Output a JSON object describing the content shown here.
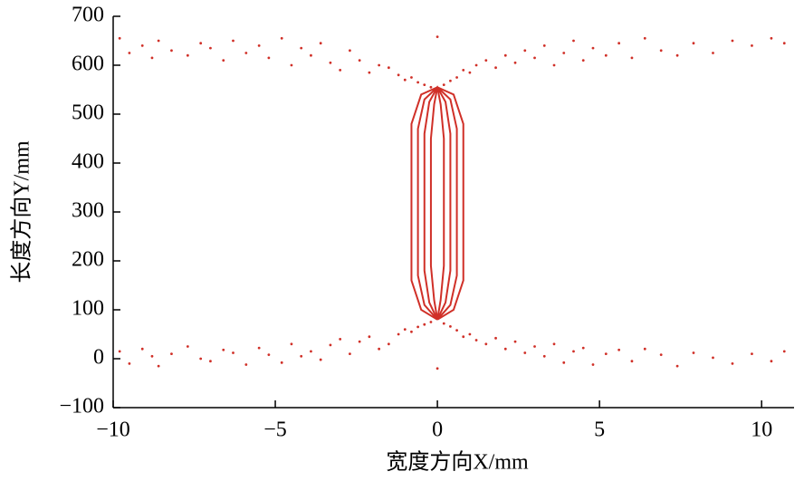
{
  "chart_data": {
    "type": "scatter",
    "x_label": "宽度方向X/mm",
    "y_label": "长度方向Y/mm",
    "xlim": [
      -10,
      11
    ],
    "ylim": [
      -100,
      700
    ],
    "xticks": [
      {
        "value": -10,
        "label": "−10"
      },
      {
        "value": -5,
        "label": "−5"
      },
      0,
      5,
      10
    ],
    "yticks": [
      {
        "value": -100,
        "label": "−100"
      },
      0,
      100,
      200,
      300,
      400,
      500,
      600,
      700
    ],
    "series": [
      {
        "color": "#d03028",
        "x": [
          -9.8,
          -9.5,
          -9.1,
          -8.8,
          -8.6,
          -8.2,
          -7.7,
          -7.3,
          -7.0,
          -6.6,
          -6.3,
          -5.9,
          -5.5,
          -5.2,
          -4.8,
          -4.5,
          -4.2,
          -3.9,
          -3.6,
          -3.3,
          -3.0,
          -2.7,
          -2.4,
          -2.1,
          -1.8,
          -1.5,
          -1.2,
          -1.0,
          -0.8,
          -0.6,
          -0.4,
          -0.2,
          0.0,
          0.2,
          0.4,
          0.6,
          0.8,
          1.0,
          1.2,
          1.5,
          1.8,
          2.1,
          2.4,
          2.7,
          3.0,
          3.3,
          3.6,
          3.9,
          4.2,
          4.5,
          4.8,
          5.2,
          5.6,
          6.0,
          6.4,
          6.9,
          7.4,
          7.9,
          8.5,
          9.1,
          9.7,
          10.3,
          10.7
        ],
        "values": [
          655,
          625,
          640,
          615,
          650,
          630,
          620,
          645,
          635,
          610,
          650,
          625,
          640,
          615,
          655,
          600,
          635,
          620,
          645,
          605,
          590,
          630,
          610,
          585,
          600,
          595,
          580,
          570,
          575,
          565,
          560,
          555,
          658,
          560,
          568,
          575,
          590,
          585,
          600,
          610,
          595,
          620,
          605,
          630,
          615,
          640,
          600,
          625,
          650,
          610,
          635,
          620,
          645,
          615,
          655,
          630,
          620,
          645,
          625,
          650,
          640,
          655,
          645
        ]
      },
      {
        "color": "#d03028",
        "x": [
          -9.8,
          -9.5,
          -9.1,
          -8.8,
          -8.6,
          -8.2,
          -7.7,
          -7.3,
          -7.0,
          -6.6,
          -6.3,
          -5.9,
          -5.5,
          -5.2,
          -4.8,
          -4.5,
          -4.2,
          -3.9,
          -3.6,
          -3.3,
          -3.0,
          -2.7,
          -2.4,
          -2.1,
          -1.8,
          -1.5,
          -1.2,
          -1.0,
          -0.8,
          -0.6,
          -0.4,
          -0.2,
          0.0,
          0.2,
          0.4,
          0.6,
          0.8,
          1.0,
          1.2,
          1.5,
          1.8,
          2.1,
          2.4,
          2.7,
          3.0,
          3.3,
          3.6,
          3.9,
          4.2,
          4.5,
          4.8,
          5.2,
          5.6,
          6.0,
          6.4,
          6.9,
          7.4,
          7.9,
          8.5,
          9.1,
          9.7,
          10.3,
          10.7
        ],
        "values": [
          15,
          -10,
          20,
          5,
          -15,
          10,
          25,
          0,
          -5,
          18,
          12,
          -12,
          22,
          8,
          -8,
          30,
          5,
          15,
          -2,
          28,
          40,
          10,
          35,
          45,
          20,
          30,
          50,
          60,
          55,
          65,
          70,
          75,
          -20,
          72,
          66,
          58,
          45,
          50,
          38,
          30,
          42,
          20,
          35,
          12,
          25,
          5,
          30,
          -8,
          15,
          22,
          -12,
          10,
          18,
          -5,
          20,
          8,
          -15,
          12,
          2,
          -10,
          10,
          -5,
          15
        ]
      },
      {
        "color": "#d03028",
        "line": true,
        "x": [
          0,
          0.5,
          0.8,
          0.8,
          0.8,
          0.5,
          0,
          -0.5,
          -0.8,
          -0.8,
          -0.8,
          -0.5,
          0
        ],
        "values": [
          80,
          100,
          160,
          300,
          480,
          540,
          555,
          540,
          480,
          300,
          160,
          100,
          80
        ]
      },
      {
        "color": "#d03028",
        "line": true,
        "x": [
          0,
          0.4,
          0.6,
          0.6,
          0.6,
          0.4,
          0,
          -0.4,
          -0.6,
          -0.6,
          -0.6,
          -0.4,
          0
        ],
        "values": [
          80,
          110,
          170,
          300,
          470,
          530,
          555,
          530,
          470,
          300,
          170,
          110,
          80
        ]
      },
      {
        "color": "#d03028",
        "line": true,
        "x": [
          0,
          0.25,
          0.4,
          0.4,
          0.4,
          0.25,
          0,
          -0.25,
          -0.4,
          -0.4,
          -0.4,
          -0.25,
          0
        ],
        "values": [
          80,
          115,
          180,
          300,
          460,
          525,
          555,
          525,
          460,
          300,
          180,
          115,
          80
        ]
      },
      {
        "color": "#d03028",
        "line": true,
        "x": [
          0,
          0.1,
          0.2,
          0.2,
          0.2,
          0.1,
          0,
          -0.1,
          -0.2,
          -0.2,
          -0.2,
          -0.1,
          0
        ],
        "values": [
          80,
          120,
          190,
          300,
          450,
          520,
          555,
          520,
          450,
          300,
          190,
          120,
          80
        ]
      }
    ]
  }
}
